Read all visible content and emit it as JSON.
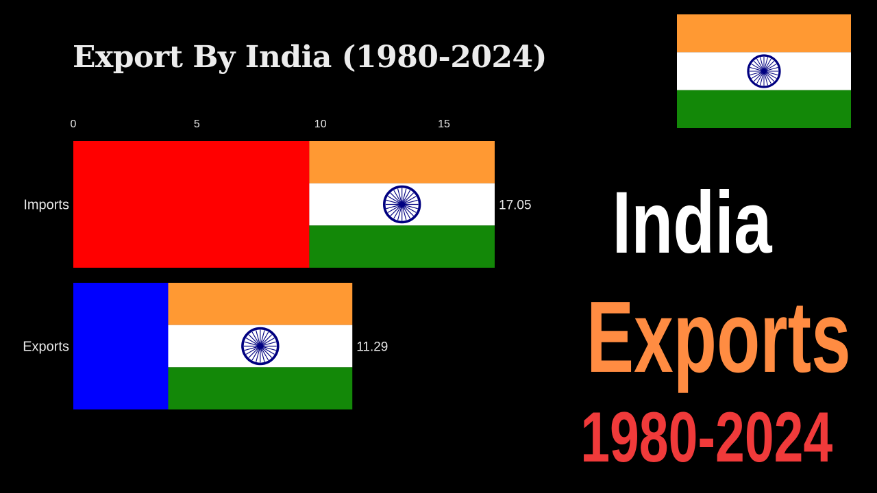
{
  "chart_data": {
    "type": "bar",
    "orientation": "horizontal",
    "title": "Export By India (1980-2024)",
    "categories": [
      "Imports",
      "Exports"
    ],
    "values": [
      17.05,
      11.29
    ],
    "value_labels": [
      "17.05",
      "11.29"
    ],
    "xlim": [
      0,
      17.05
    ],
    "xticks": [
      0,
      5,
      10,
      15
    ],
    "bar_colors": [
      "#ff0000",
      "#0000ff"
    ],
    "bar_flag_share": [
      0.44,
      0.66
    ],
    "flag_colors": {
      "saffron": "#ff9933",
      "white": "#ffffff",
      "green": "#138808",
      "chakra": "#000080"
    },
    "grid": false,
    "legend": "none"
  },
  "headline": {
    "country": "India",
    "topic": "Exports",
    "years": "1980-2024",
    "colors": {
      "country": "#ffffff",
      "topic": "#ff8c42",
      "years": "#f03a3a"
    }
  },
  "corner_flag": {
    "icon": "india-flag-icon"
  }
}
